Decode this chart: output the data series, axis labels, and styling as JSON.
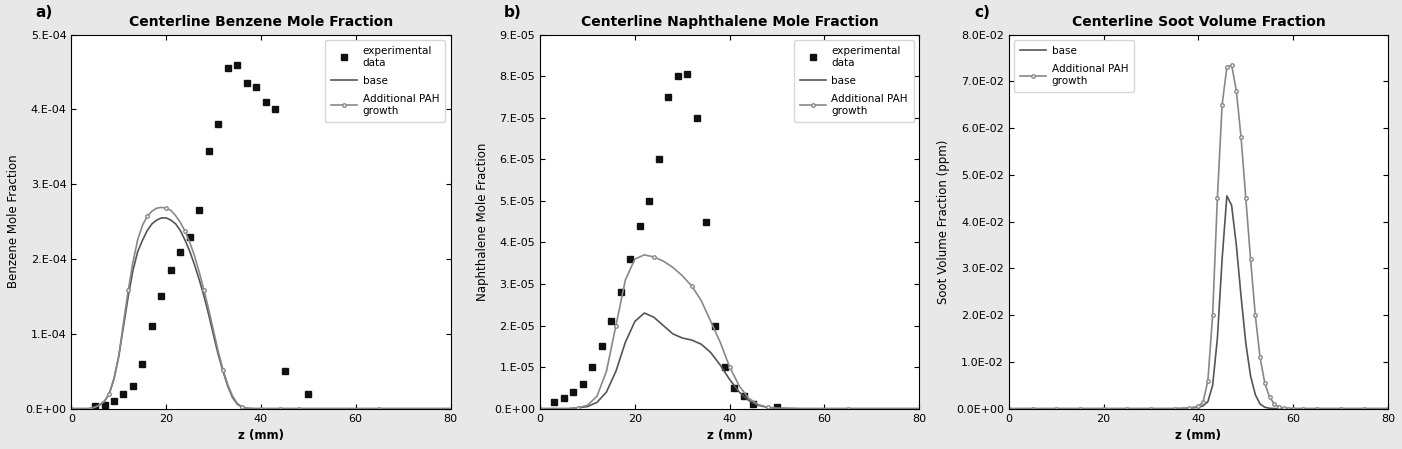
{
  "fig_width": 14.02,
  "fig_height": 4.49,
  "background_color": "#e8e8e8",
  "panel_a": {
    "title": "Centerline Benzene Mole Fraction",
    "xlabel": "z (mm)",
    "ylabel": "Benzene Mole Fraction",
    "xlim": [
      0,
      80
    ],
    "ylim": [
      0,
      0.0005
    ],
    "yticks": [
      0,
      0.0001,
      0.0002,
      0.0003,
      0.0004,
      0.0005
    ],
    "ytick_labels": [
      "0.E+00",
      "1.E-04",
      "2.E-04",
      "3.E-04",
      "4.E-04",
      "5.E-04"
    ],
    "xticks": [
      0,
      20,
      40,
      60,
      80
    ],
    "exp_x": [
      5,
      7,
      9,
      11,
      13,
      15,
      17,
      19,
      21,
      23,
      25,
      27,
      29,
      31,
      33,
      35,
      37,
      39,
      41,
      43,
      45,
      50
    ],
    "exp_y": [
      3e-06,
      5e-06,
      1e-05,
      2e-05,
      3e-05,
      6e-05,
      0.00011,
      0.00015,
      0.000185,
      0.00021,
      0.00023,
      0.000265,
      0.000345,
      0.00038,
      0.000455,
      0.00046,
      0.000435,
      0.00043,
      0.00041,
      0.0004,
      5e-05,
      2e-05
    ],
    "base_x": [
      0,
      1,
      2,
      3,
      4,
      5,
      6,
      7,
      8,
      9,
      10,
      11,
      12,
      13,
      14,
      15,
      16,
      17,
      18,
      19,
      20,
      21,
      22,
      23,
      24,
      25,
      26,
      27,
      28,
      29,
      30,
      31,
      32,
      33,
      34,
      35,
      36,
      37,
      38,
      39,
      40,
      41,
      42,
      43,
      44,
      45,
      46,
      47,
      48,
      50,
      55,
      60,
      65,
      70,
      75,
      80
    ],
    "base_y": [
      0,
      0,
      0,
      0,
      0,
      2e-06,
      5e-06,
      1e-05,
      2e-05,
      4e-05,
      7e-05,
      0.00011,
      0.00015,
      0.000185,
      0.00021,
      0.000225,
      0.000238,
      0.000247,
      0.000252,
      0.000255,
      0.000255,
      0.000252,
      0.000247,
      0.000238,
      0.000225,
      0.00021,
      0.000192,
      0.000172,
      0.00015,
      0.000125,
      9.8e-05,
      7.2e-05,
      5e-05,
      3e-05,
      1.5e-05,
      6e-06,
      2e-06,
      5e-07,
      1e-07,
      0,
      0,
      0,
      0,
      0,
      0,
      0,
      0,
      0,
      0,
      0,
      0,
      0,
      0,
      0,
      0,
      0
    ],
    "pah_x": [
      0,
      1,
      2,
      3,
      4,
      5,
      6,
      7,
      8,
      9,
      10,
      11,
      12,
      13,
      14,
      15,
      16,
      17,
      18,
      19,
      20,
      21,
      22,
      23,
      24,
      25,
      26,
      27,
      28,
      29,
      30,
      31,
      32,
      33,
      34,
      35,
      36,
      37,
      38,
      39,
      40,
      41,
      42,
      43,
      44,
      45,
      46,
      47,
      48,
      50,
      55,
      60,
      65,
      70,
      75,
      80
    ],
    "pah_y": [
      0,
      0,
      0,
      0,
      0,
      2e-06,
      5e-06,
      1e-05,
      2e-05,
      4e-05,
      7e-05,
      0.000115,
      0.000158,
      0.000196,
      0.000226,
      0.000245,
      0.000257,
      0.000264,
      0.000268,
      0.000269,
      0.000268,
      0.000265,
      0.000258,
      0.000249,
      0.000237,
      0.000222,
      0.000204,
      0.000182,
      0.000158,
      0.000132,
      0.000104,
      7.6e-05,
      5.2e-05,
      3.2e-05,
      1.7e-05,
      7e-06,
      2.5e-06,
      7e-07,
      2e-07,
      0,
      0,
      0,
      0,
      0,
      0,
      0,
      0,
      0,
      0,
      0,
      0,
      0,
      0,
      0,
      0,
      0
    ],
    "legend_labels": [
      "experimental\ndata",
      "base",
      "Additional PAH\ngrowth"
    ],
    "legend_loc": "upper right"
  },
  "panel_b": {
    "title": "Centerline Naphthalene Mole Fraction",
    "xlabel": "z (mm)",
    "ylabel": "Naphthalene Mole Fraction",
    "xlim": [
      0,
      80
    ],
    "ylim": [
      0,
      9e-05
    ],
    "yticks": [
      0,
      1e-05,
      2e-05,
      3e-05,
      4e-05,
      5e-05,
      6e-05,
      7e-05,
      8e-05,
      9e-05
    ],
    "ytick_labels": [
      "0.E+00",
      "1.E-05",
      "2.E-05",
      "3.E-05",
      "4.E-05",
      "5.E-05",
      "6.E-05",
      "7.E-05",
      "8.E-05",
      "9.E-05"
    ],
    "xticks": [
      0,
      20,
      40,
      60,
      80
    ],
    "exp_x": [
      3,
      5,
      7,
      9,
      11,
      13,
      15,
      17,
      19,
      21,
      23,
      25,
      27,
      29,
      31,
      33,
      35,
      37,
      39,
      41,
      43,
      45,
      50
    ],
    "exp_y": [
      1.5e-06,
      2.5e-06,
      4e-06,
      6e-06,
      1e-05,
      1.5e-05,
      2.1e-05,
      2.8e-05,
      3.6e-05,
      4.4e-05,
      5e-05,
      6e-05,
      7.5e-05,
      8e-05,
      8.05e-05,
      7e-05,
      4.5e-05,
      2e-05,
      1e-05,
      5e-06,
      3e-06,
      1e-06,
      5e-07
    ],
    "base_x": [
      0,
      2,
      4,
      6,
      8,
      10,
      12,
      14,
      16,
      18,
      20,
      22,
      24,
      26,
      28,
      30,
      32,
      34,
      36,
      38,
      40,
      42,
      44,
      46,
      48,
      50,
      55,
      60,
      65,
      70,
      75,
      80
    ],
    "base_y": [
      0,
      0,
      0,
      0,
      2e-07,
      5e-07,
      1.5e-06,
      4e-06,
      9e-06,
      1.6e-05,
      2.1e-05,
      2.3e-05,
      2.2e-05,
      2e-05,
      1.8e-05,
      1.7e-05,
      1.65e-05,
      1.55e-05,
      1.35e-05,
      1.05e-05,
      7e-06,
      4e-06,
      2e-06,
      8e-07,
      3e-07,
      1e-07,
      0,
      0,
      0,
      0,
      0,
      0
    ],
    "pah_x": [
      0,
      2,
      4,
      6,
      8,
      10,
      12,
      14,
      16,
      18,
      20,
      22,
      24,
      26,
      28,
      30,
      32,
      34,
      36,
      38,
      40,
      42,
      44,
      46,
      48,
      50,
      55,
      60,
      65,
      70,
      75,
      80
    ],
    "pah_y": [
      0,
      0,
      0,
      0,
      2e-07,
      8e-07,
      3e-06,
      9e-06,
      2e-05,
      3.1e-05,
      3.6e-05,
      3.7e-05,
      3.65e-05,
      3.55e-05,
      3.4e-05,
      3.2e-05,
      2.95e-05,
      2.6e-05,
      2.1e-05,
      1.6e-05,
      1e-05,
      5.5e-06,
      2.5e-06,
      1e-06,
      3e-07,
      1e-07,
      0,
      0,
      0,
      0,
      0,
      0
    ],
    "legend_labels": [
      "experimental\ndata",
      "base",
      "Additional PAH\ngrowth"
    ],
    "legend_loc": "upper right"
  },
  "panel_c": {
    "title": "Centerline Soot Volume Fraction",
    "xlabel": "z (mm)",
    "ylabel": "Soot Volume Fraction (ppm)",
    "xlim": [
      0,
      80
    ],
    "ylim": [
      0,
      0.08
    ],
    "yticks": [
      0,
      0.01,
      0.02,
      0.03,
      0.04,
      0.05,
      0.06,
      0.07,
      0.08
    ],
    "ytick_labels": [
      "0.0E+00",
      "1.0E-02",
      "2.0E-02",
      "3.0E-02",
      "4.0E-02",
      "5.0E-02",
      "6.0E-02",
      "7.0E-02",
      "8.0E-02"
    ],
    "xticks": [
      0,
      20,
      40,
      60,
      80
    ],
    "base_x": [
      0,
      5,
      10,
      15,
      20,
      25,
      30,
      35,
      38,
      40,
      41,
      42,
      43,
      44,
      45,
      46,
      47,
      48,
      49,
      50,
      51,
      52,
      53,
      54,
      55,
      56,
      57,
      58,
      59,
      60,
      62,
      65,
      70,
      75,
      80
    ],
    "base_y": [
      0,
      0,
      0,
      0,
      0,
      0,
      0,
      0,
      0.0001,
      0.0003,
      0.0006,
      0.0015,
      0.005,
      0.015,
      0.032,
      0.0455,
      0.0435,
      0.035,
      0.024,
      0.014,
      0.007,
      0.003,
      0.001,
      0.0003,
      8e-05,
      2e-05,
      5e-06,
      1e-06,
      2e-07,
      0,
      0,
      0,
      0,
      0,
      0
    ],
    "pah_x": [
      0,
      5,
      10,
      15,
      20,
      25,
      30,
      35,
      38,
      40,
      41,
      42,
      43,
      44,
      45,
      46,
      47,
      48,
      49,
      50,
      51,
      52,
      53,
      54,
      55,
      56,
      57,
      58,
      59,
      60,
      62,
      65,
      70,
      75,
      80
    ],
    "pah_y": [
      0,
      0,
      0,
      0,
      0,
      0,
      0,
      0,
      0.0001,
      0.0005,
      0.0015,
      0.006,
      0.02,
      0.045,
      0.065,
      0.073,
      0.0735,
      0.068,
      0.058,
      0.045,
      0.032,
      0.02,
      0.011,
      0.0055,
      0.0025,
      0.001,
      0.00035,
      0.0001,
      2.5e-05,
      5e-06,
      0,
      0,
      0,
      0,
      0
    ],
    "legend_labels": [
      "base",
      "Additional PAH\ngrowth"
    ],
    "legend_loc": "upper left"
  },
  "line_color_base": "#555555",
  "line_color_pah": "#888888",
  "exp_color": "#111111",
  "marker_style_pah": "o",
  "marker_size_pah": 2.5,
  "marker_exp_size": 5,
  "title_fontsize": 10,
  "label_fontsize": 8.5,
  "tick_fontsize": 8,
  "legend_fontsize": 7.5
}
